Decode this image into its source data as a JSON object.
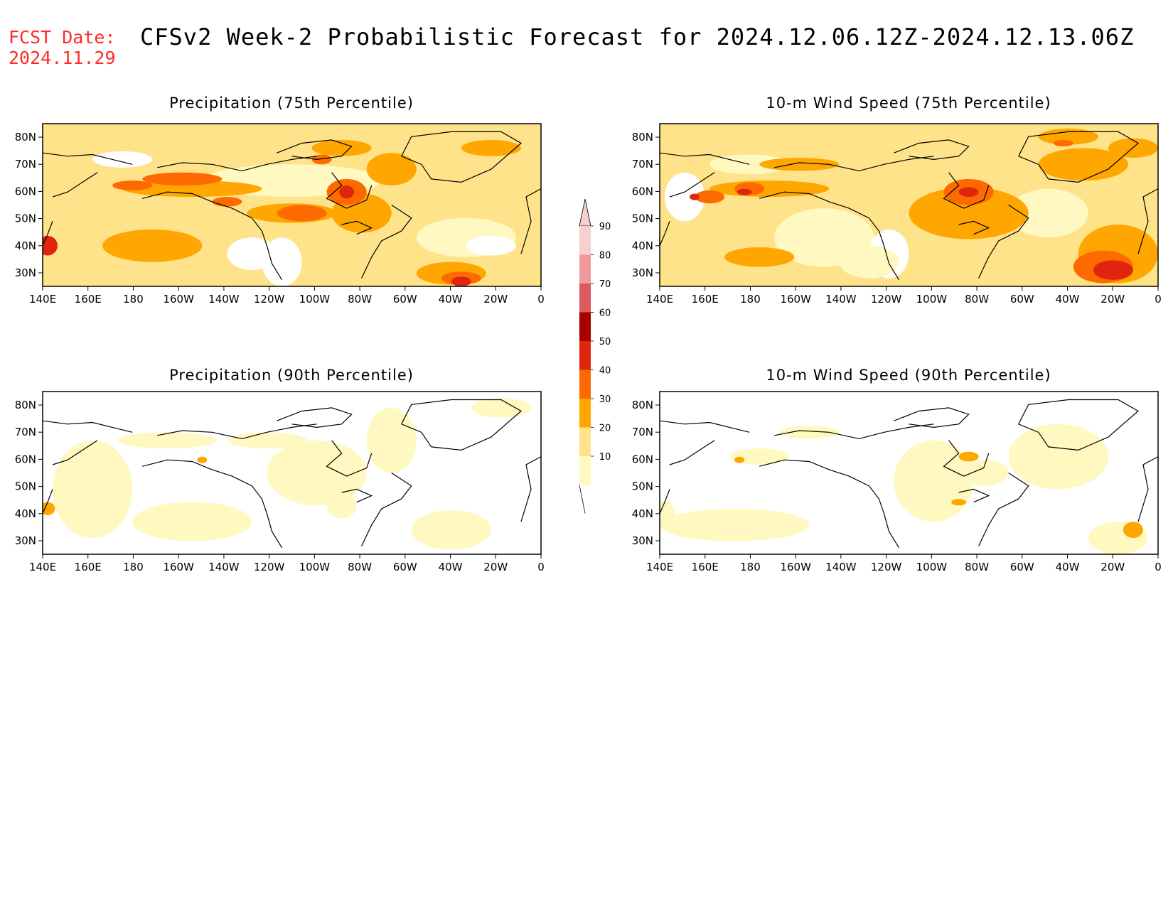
{
  "header": {
    "fcst_label": "FCST Date:",
    "fcst_date": "2024.11.29",
    "title": "CFSv2 Week-2 Probabilistic Forecast for 2024.12.06.12Z-2024.12.13.06Z"
  },
  "axes": {
    "lon_ticks": [
      "140E",
      "160E",
      "180",
      "160W",
      "140W",
      "120W",
      "100W",
      "80W",
      "60W",
      "40W",
      "20W",
      "0"
    ],
    "lat_ticks": [
      "80N",
      "70N",
      "60N",
      "50N",
      "40N",
      "30N"
    ]
  },
  "panels": [
    {
      "id": "precip75",
      "title": "Precipitation (75th Percentile)"
    },
    {
      "id": "wind75",
      "title": "10-m Wind Speed (75th Percentile)"
    },
    {
      "id": "precip90",
      "title": "Precipitation (90th Percentile)"
    },
    {
      "id": "wind90",
      "title": "10-m Wind Speed (90th Percentile)"
    }
  ],
  "colorbar": {
    "levels": [
      "90",
      "80",
      "70",
      "60",
      "50",
      "40",
      "30",
      "20",
      "10"
    ],
    "colors": [
      "#f6d0d0",
      "#f19a9e",
      "#dc5a5e",
      "#a80000",
      "#e0250e",
      "#ff6a00",
      "#ffa600",
      "#ffe38a",
      "#fff8c0"
    ]
  },
  "palette": {
    "shade_10": "#fff8c0",
    "shade_20": "#ffe38a",
    "shade_30": "#ffa600",
    "shade_40": "#ff6a00",
    "shade_50": "#e0250e",
    "coastline": "#000000"
  }
}
